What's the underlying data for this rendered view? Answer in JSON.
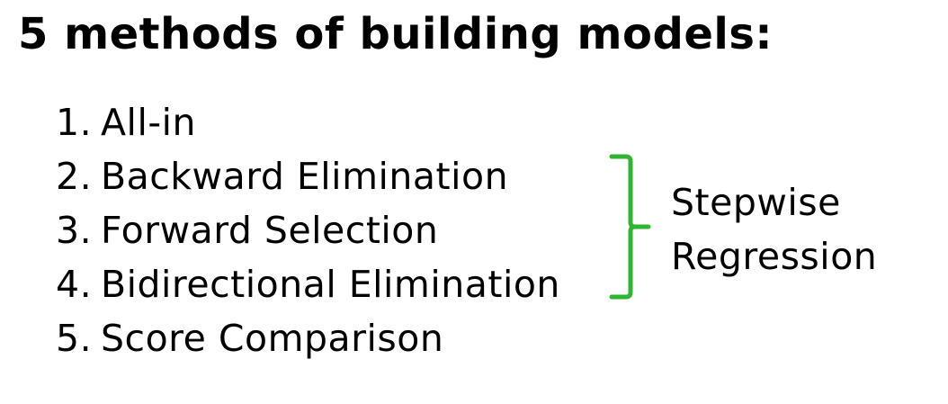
{
  "title": "5 methods of building models:",
  "items": [
    {
      "number": "1.",
      "label": "All-in"
    },
    {
      "number": "2.",
      "label": "Backward Elimination"
    },
    {
      "number": "3.",
      "label": "Forward Selection"
    },
    {
      "number": "4.",
      "label": "Bidirectional Elimination"
    },
    {
      "number": "5.",
      "label": "Score Comparison"
    }
  ],
  "group": {
    "line1": "Stepwise",
    "line2": "Regression"
  },
  "colors": {
    "text": "#000000",
    "brace": "#2fb52f",
    "background": "#ffffff"
  }
}
